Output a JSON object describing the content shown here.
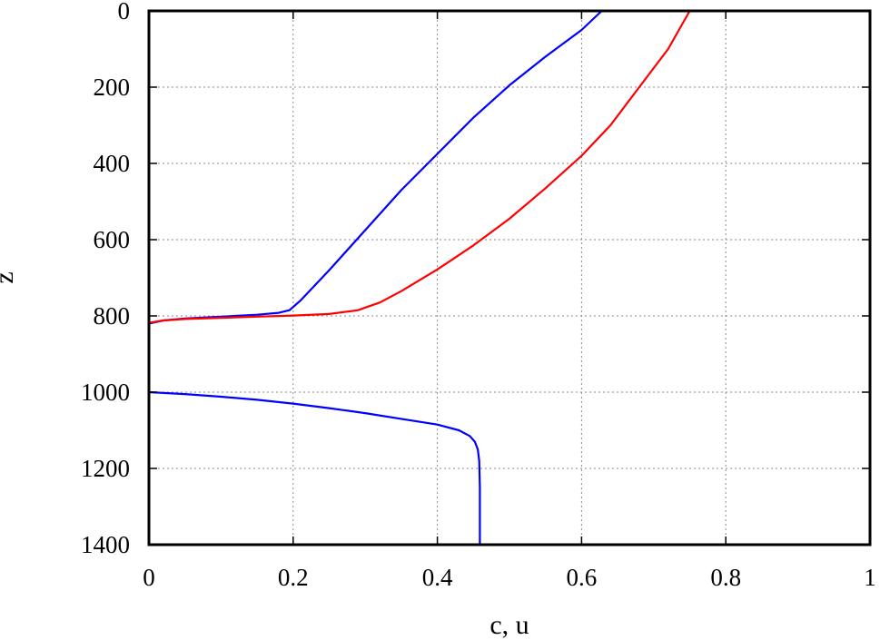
{
  "chart_data": {
    "type": "line",
    "title": "",
    "xlabel": "c, u",
    "ylabel": "z",
    "xlim": [
      0,
      1
    ],
    "ylim": [
      0,
      1400
    ],
    "y_inverted": true,
    "grid": true,
    "x_ticks": [
      "0",
      "0.2",
      "0.4",
      "0.6",
      "0.8",
      "1"
    ],
    "y_ticks": [
      "0",
      "200",
      "400",
      "600",
      "800",
      "1000",
      "1200",
      "1400"
    ],
    "series": [
      {
        "color": "#0000ff",
        "segments": [
          {
            "x": [
              0.628,
              0.6,
              0.55,
              0.5,
              0.45,
              0.4,
              0.35,
              0.3,
              0.25,
              0.21,
              0.195,
              0.18,
              0.15,
              0.1,
              0.05,
              0.02,
              0.0
            ],
            "y": [
              0,
              50,
              120,
              195,
              280,
              375,
              470,
              575,
              680,
              760,
              785,
              792,
              797,
              802,
              807,
              812,
              820
            ]
          },
          {
            "x": [
              0.0,
              0.05,
              0.1,
              0.15,
              0.2,
              0.25,
              0.3,
              0.35,
              0.4,
              0.43,
              0.445,
              0.452,
              0.456,
              0.458,
              0.459,
              0.459
            ],
            "y": [
              1000,
              1005,
              1012,
              1020,
              1030,
              1042,
              1055,
              1070,
              1085,
              1100,
              1115,
              1130,
              1150,
              1180,
              1250,
              1400
            ]
          }
        ]
      },
      {
        "color": "#ff0000",
        "segments": [
          {
            "x": [
              0.75,
              0.72,
              0.68,
              0.64,
              0.6,
              0.55,
              0.5,
              0.45,
              0.4,
              0.35,
              0.32,
              0.3,
              0.29,
              0.25,
              0.2,
              0.15,
              0.1,
              0.05,
              0.02,
              0.0
            ],
            "y": [
              0,
              100,
              200,
              300,
              380,
              465,
              545,
              615,
              678,
              735,
              765,
              778,
              785,
              795,
              799,
              802,
              805,
              808,
              812,
              818
            ]
          }
        ]
      }
    ]
  }
}
